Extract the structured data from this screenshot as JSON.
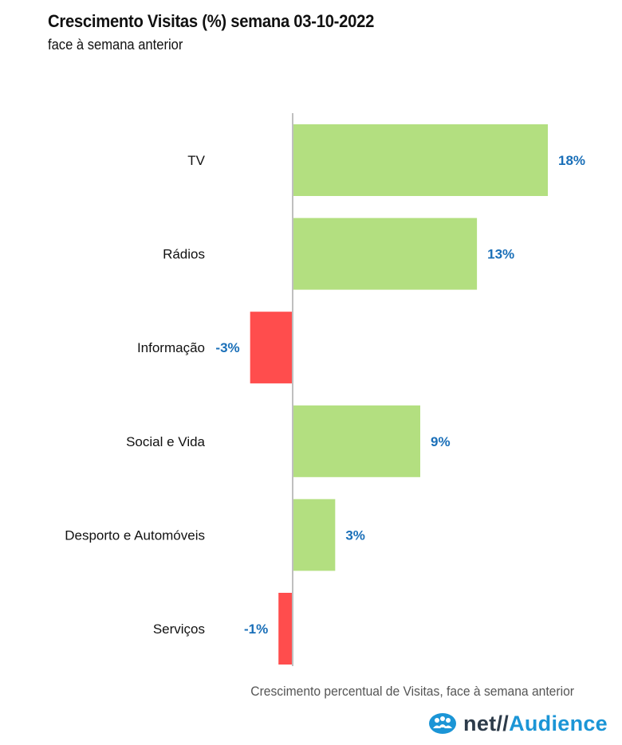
{
  "header": {
    "title": "Crescimento Visitas (%) semana 03-10-2022",
    "subtitle": "face à semana anterior"
  },
  "footer": {
    "note": "Crescimento percentual de Visitas, face à semana anterior",
    "brand_net": "net",
    "brand_slash": "//",
    "brand_audience": "Audience"
  },
  "colors": {
    "positive": "#b3df80",
    "negative": "#ff4d4d",
    "value_label": "#1a6fb8",
    "axis": "#bfbfbf"
  },
  "chart_data": {
    "type": "bar",
    "orientation": "horizontal",
    "title": "Crescimento Visitas (%) semana 03-10-2022",
    "subtitle": "face à semana anterior",
    "categories": [
      "TV",
      "Rádios",
      "Informação",
      "Social e Vida",
      "Desporto e Automóveis",
      "Serviços"
    ],
    "values": [
      18,
      13,
      -3,
      9,
      3,
      -1
    ],
    "value_labels": [
      "18%",
      "13%",
      "-3%",
      "9%",
      "3%",
      "-1%"
    ],
    "unit": "%",
    "xlabel": "Crescimento percentual de Visitas, face à semana anterior",
    "xlim": [
      -20,
      20
    ],
    "grid": false,
    "legend": "none"
  }
}
